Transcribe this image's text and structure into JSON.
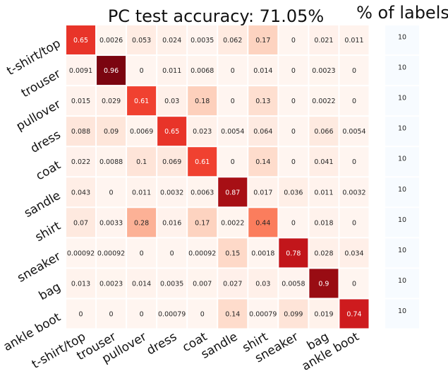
{
  "chart_data": [
    {
      "type": "heatmap",
      "title": "PC test accuracy: 71.05%",
      "xlabel": "",
      "ylabel": "",
      "rows": [
        "t-shirt/top",
        "trouser",
        "pullover",
        "dress",
        "coat",
        "sandle",
        "shirt",
        "sneaker",
        "bag",
        "ankle boot"
      ],
      "columns": [
        "t-shirt/top",
        "trouser",
        "pullover",
        "dress",
        "coat",
        "sandle",
        "shirt",
        "sneaker",
        "bag",
        "ankle boot"
      ],
      "values": [
        [
          0.65,
          0.0026,
          0.053,
          0.024,
          0.0035,
          0.062,
          0.17,
          0,
          0.021,
          0.011
        ],
        [
          0.0091,
          0.96,
          0,
          0.011,
          0.0068,
          0,
          0.014,
          0,
          0.0023,
          0
        ],
        [
          0.015,
          0.029,
          0.61,
          0.03,
          0.18,
          0,
          0.13,
          0,
          0.0022,
          0
        ],
        [
          0.088,
          0.09,
          0.0069,
          0.65,
          0.023,
          0.0054,
          0.064,
          0,
          0.066,
          0.0054
        ],
        [
          0.022,
          0.0088,
          0.1,
          0.069,
          0.61,
          0,
          0.14,
          0,
          0.041,
          0
        ],
        [
          0.043,
          0,
          0.011,
          0.0032,
          0.0063,
          0.87,
          0.017,
          0.036,
          0.011,
          0.0032
        ],
        [
          0.07,
          0.0033,
          0.28,
          0.016,
          0.17,
          0.0022,
          0.44,
          0,
          0.018,
          0
        ],
        [
          0.00092,
          0.00092,
          0,
          0,
          0.00092,
          0.15,
          0.0018,
          0.78,
          0.028,
          0.034
        ],
        [
          0.013,
          0.0023,
          0.014,
          0.0035,
          0.007,
          0.027,
          0.03,
          0.0058,
          0.9,
          0
        ],
        [
          0,
          0,
          0,
          0.00079,
          0,
          0.14,
          0.00079,
          0.099,
          0.019,
          0.74
        ]
      ],
      "labels": [
        [
          "0.65",
          "0.0026",
          "0.053",
          "0.024",
          "0.0035",
          "0.062",
          "0.17",
          "0",
          "0.021",
          "0.011"
        ],
        [
          "0.0091",
          "0.96",
          "0",
          "0.011",
          "0.0068",
          "0",
          "0.014",
          "0",
          "0.0023",
          "0"
        ],
        [
          "0.015",
          "0.029",
          "0.61",
          "0.03",
          "0.18",
          "0",
          "0.13",
          "0",
          "0.0022",
          "0"
        ],
        [
          "0.088",
          "0.09",
          "0.0069",
          "0.65",
          "0.023",
          "0.0054",
          "0.064",
          "0",
          "0.066",
          "0.0054"
        ],
        [
          "0.022",
          "0.0088",
          "0.1",
          "0.069",
          "0.61",
          "0",
          "0.14",
          "0",
          "0.041",
          "0"
        ],
        [
          "0.043",
          "0",
          "0.011",
          "0.0032",
          "0.0063",
          "0.87",
          "0.017",
          "0.036",
          "0.011",
          "0.0032"
        ],
        [
          "0.07",
          "0.0033",
          "0.28",
          "0.016",
          "0.17",
          "0.0022",
          "0.44",
          "0",
          "0.018",
          "0"
        ],
        [
          "0.00092",
          "0.00092",
          "0",
          "0",
          "0.00092",
          "0.15",
          "0.0018",
          "0.78",
          "0.028",
          "0.034"
        ],
        [
          "0.013",
          "0.0023",
          "0.014",
          "0.0035",
          "0.007",
          "0.027",
          "0.03",
          "0.0058",
          "0.9",
          "0"
        ],
        [
          "0",
          "0",
          "0",
          "0.00079",
          "0",
          "0.14",
          "0.00079",
          "0.099",
          "0.019",
          "0.74"
        ]
      ],
      "colormap": "Reds",
      "vmin": 0,
      "vmax": 1,
      "grid": false
    },
    {
      "type": "heatmap",
      "title": "% of labels",
      "rows": [
        "t-shirt/top",
        "trouser",
        "pullover",
        "dress",
        "coat",
        "sandle",
        "shirt",
        "sneaker",
        "bag",
        "ankle boot"
      ],
      "values": [
        10,
        10,
        10,
        10,
        10,
        10,
        10,
        10,
        10,
        10
      ],
      "labels": [
        "10",
        "10",
        "10",
        "10",
        "10",
        "10",
        "10",
        "10",
        "10",
        "10"
      ],
      "cell_color": "#f7fbff"
    }
  ]
}
